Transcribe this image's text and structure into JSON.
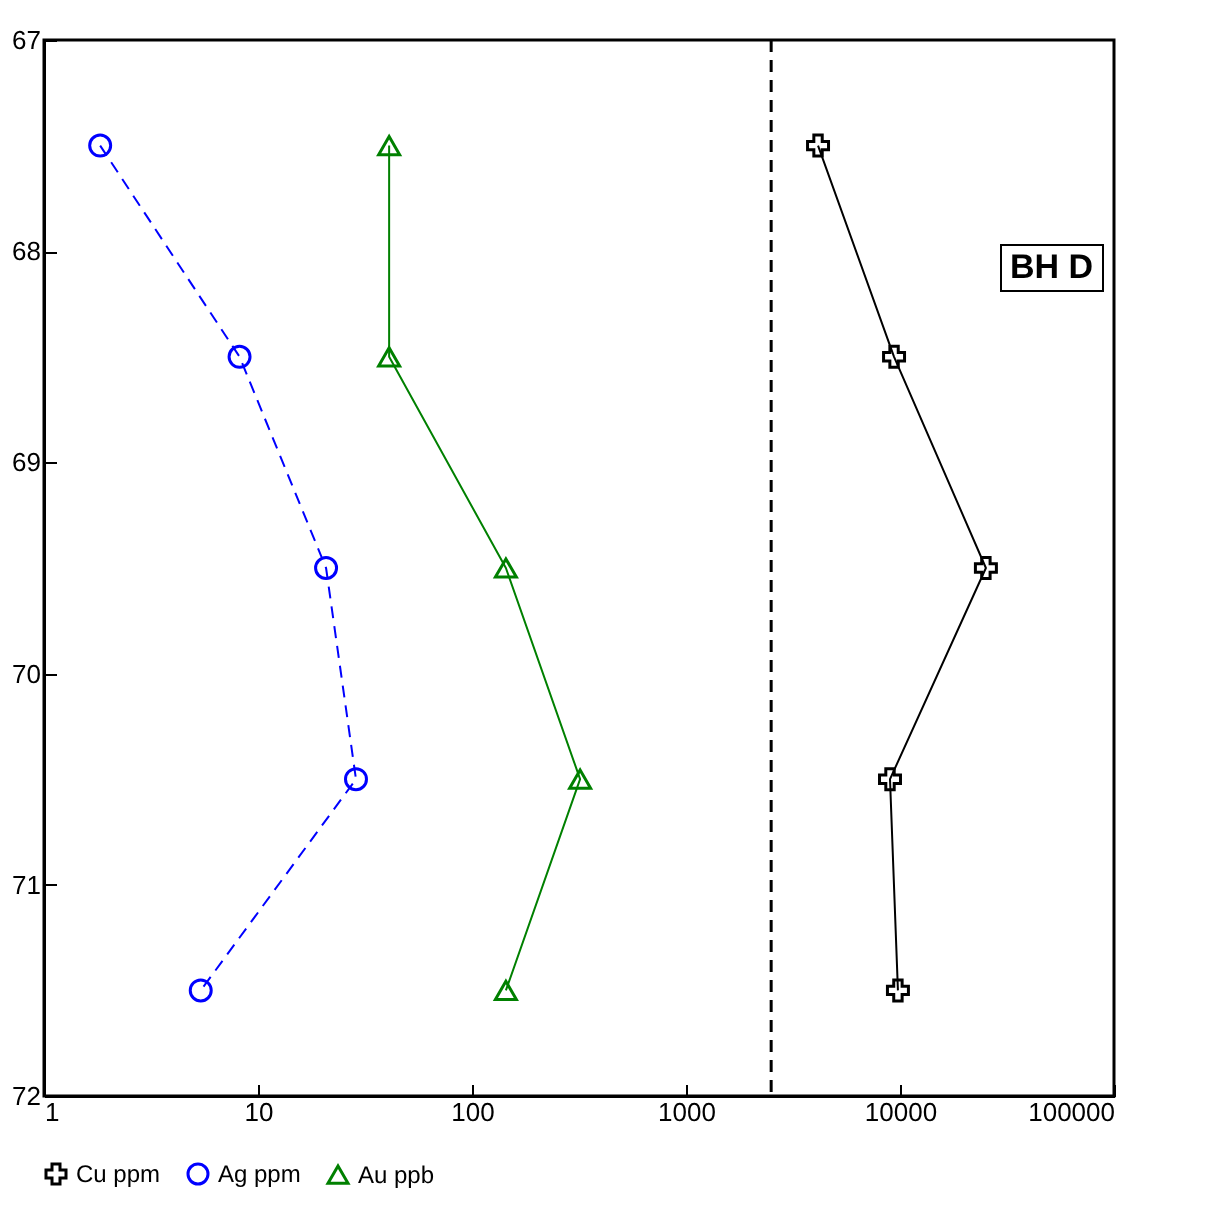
{
  "chart_data": {
    "type": "line",
    "xlim": [
      1,
      100000
    ],
    "xticks": [
      1,
      10,
      100,
      1000,
      10000,
      100000
    ],
    "ylim": [
      72,
      67
    ],
    "yticks": [
      67,
      68,
      69,
      70,
      71,
      72
    ],
    "log": "x",
    "grid": false,
    "legend": "bottom",
    "series": [
      {
        "name": "Cu ppm",
        "color": "#000000",
        "marker": "cross",
        "line_style": "solid",
        "x": [
          4140,
          9380,
          25200,
          8980,
          9780
        ],
        "values": [
          67.5,
          68.5,
          69.5,
          70.5,
          71.5
        ]
      },
      {
        "name": "Ag ppm",
        "color": "#0000ff",
        "marker": "circle",
        "line_style": "dashed",
        "x": [
          1.83,
          8.2,
          20.8,
          28.7,
          5.4
        ],
        "values": [
          67.5,
          68.5,
          69.5,
          70.5,
          71.5
        ]
      },
      {
        "name": "Au ppb",
        "color": "#008000",
        "marker": "triangle",
        "line_style": "solid",
        "x": [
          41,
          41,
          144,
          320,
          144
        ],
        "values": [
          67.5,
          68.5,
          69.5,
          70.5,
          71.5
        ]
      }
    ],
    "ref_lines": [
      {
        "axis": "x",
        "value": 2500,
        "color": "#000000",
        "line_style": "dashed"
      }
    ],
    "annotations": [
      "BH D"
    ]
  }
}
